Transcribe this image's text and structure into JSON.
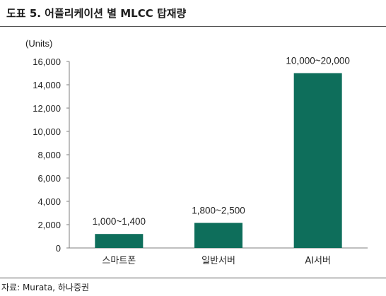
{
  "header": {
    "title": "도표 5. 어플리케이션 별 MLCC 탑재량"
  },
  "footer": {
    "source": "자료: Murata, 하나증권"
  },
  "chart_data": {
    "type": "bar",
    "unit_label": "(Units)",
    "categories": [
      "스마트폰",
      "일반서버",
      "AI서버"
    ],
    "values": [
      1200,
      2150,
      15000
    ],
    "data_labels": [
      "1,000~1,400",
      "1,800~2,500",
      "10,000~20,000"
    ],
    "ylim": [
      0,
      16000
    ],
    "y_ticks": [
      0,
      2000,
      4000,
      6000,
      8000,
      10000,
      12000,
      14000,
      16000
    ],
    "y_tick_labels": [
      "0",
      "2,000",
      "4,000",
      "6,000",
      "8,000",
      "10,000",
      "12,000",
      "14,000",
      "16,000"
    ],
    "bar_color": "#0e6e5b",
    "grid": false,
    "legend": "none"
  }
}
